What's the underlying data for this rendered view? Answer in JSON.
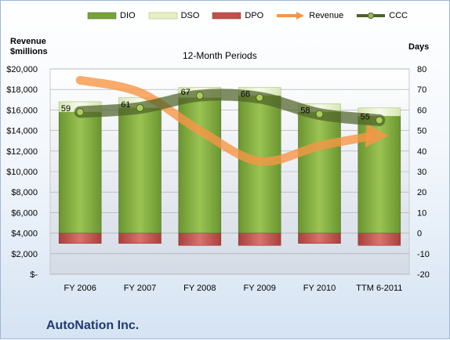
{
  "chart_data": {
    "type": "bar",
    "title": "12-Month Periods",
    "company": "AutoNation Inc.",
    "y_left_label": [
      "Revenue",
      "$millions"
    ],
    "y_right_label": "Days",
    "categories": [
      "FY 2006",
      "FY 2007",
      "FY 2008",
      "FY 2009",
      "FY 2010",
      "TTM 6-2011"
    ],
    "y_left_ticks": [
      "$20,000",
      "$18,000",
      "$16,000",
      "$14,000",
      "$12,000",
      "$10,000",
      "$8,000",
      "$6,000",
      "$4,000",
      "$2,000",
      "$-"
    ],
    "y_right_ticks": [
      "80",
      "70",
      "60",
      "50",
      "40",
      "30",
      "20",
      "10",
      "0",
      "-10",
      "-20"
    ],
    "ylim_left": [
      0,
      20000
    ],
    "ylim_right": [
      -20,
      80
    ],
    "legend": [
      "DIO",
      "DSO",
      "DPO",
      "Revenue",
      "CCC"
    ],
    "series": [
      {
        "name": "DIO",
        "axis": "right",
        "values": [
          59,
          61,
          66,
          67,
          59,
          57
        ]
      },
      {
        "name": "DSO",
        "axis": "right",
        "values": [
          5,
          5,
          5,
          4,
          4,
          4
        ]
      },
      {
        "name": "DPO",
        "axis": "right",
        "values": [
          -5,
          -5,
          -6,
          -6,
          -5,
          -6
        ]
      },
      {
        "name": "Revenue",
        "axis": "left",
        "values": [
          18900,
          17700,
          14000,
          11000,
          12500,
          13500
        ]
      },
      {
        "name": "CCC",
        "axis": "right",
        "values": [
          59,
          61,
          67,
          66,
          58,
          55
        ]
      }
    ],
    "ccc_labels": [
      "59",
      "61",
      "67",
      "66",
      "58",
      "55"
    ],
    "colors": {
      "dio": "#77a33a",
      "dso": "#e4efc5",
      "dpo": "#c0504d",
      "revenue": "#f79646",
      "ccc": "#4f6228"
    }
  }
}
